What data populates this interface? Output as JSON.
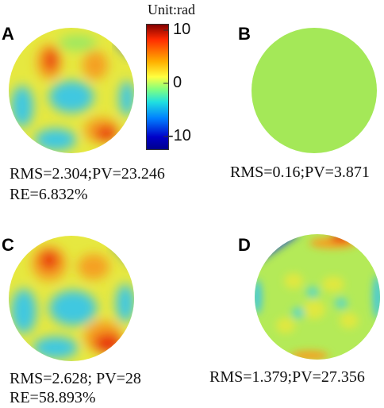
{
  "panels": [
    {
      "id": "A",
      "stats_line1": "RMS=2.304;PV=23.246",
      "stats_line2": "RE=6.832%"
    },
    {
      "id": "B",
      "stats_line1": "RMS=0.16;PV=3.871",
      "stats_line2": ""
    },
    {
      "id": "C",
      "stats_line1": "RMS=2.628; PV=28",
      "stats_line2": "RE=58.893%"
    },
    {
      "id": "D",
      "stats_line1": "RMS=1.379;PV=27.356",
      "stats_line2": ""
    }
  ],
  "colorbar": {
    "unit_label": "Unit:rad",
    "ticks": [
      "10",
      "0",
      "-10"
    ],
    "colors": [
      "#800000",
      "#ff2a00",
      "#ffb000",
      "#ffff40",
      "#80ff80",
      "#20e0e0",
      "#0080ff",
      "#0000c8",
      "#00008a"
    ]
  },
  "map_colors": {
    "yellow": "#e6e840",
    "cyan": "#40c8e0",
    "green": "#9ee860",
    "orange": "#f5a020",
    "red": "#e83010",
    "blue": "#2050d0",
    "flat": "#a4e858"
  }
}
